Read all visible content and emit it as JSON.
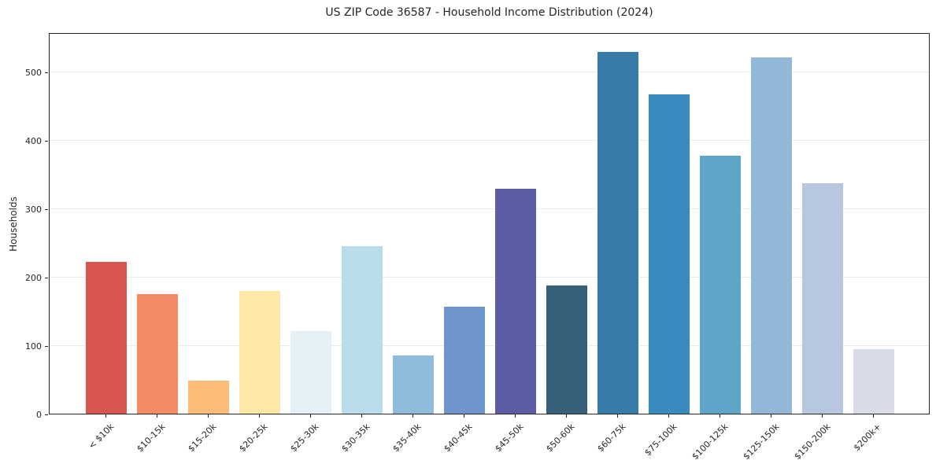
{
  "chart_data": {
    "type": "bar",
    "title": "US ZIP Code 36587 - Household Income Distribution (2024)",
    "xlabel": "",
    "ylabel": "Households",
    "categories": [
      "< $10k",
      "$10-15k",
      "$15-20k",
      "$20-25k",
      "$25-30k",
      "$30-35k",
      "$35-40k",
      "$40-45k",
      "$45-50k",
      "$50-60k",
      "$60-75k",
      "$75-100k",
      "$100-125k",
      "$125-150k",
      "$150-200k",
      "$200k+"
    ],
    "values": [
      222,
      175,
      48,
      179,
      121,
      245,
      85,
      156,
      329,
      188,
      529,
      467,
      377,
      521,
      337,
      94
    ],
    "bar_colors": [
      "#d95550",
      "#f58a67",
      "#fcbb79",
      "#fde9a5",
      "#e4f1f7",
      "#b9ddeb",
      "#8fbbdd",
      "#6e96cb",
      "#5b5ba6",
      "#34607a",
      "#377ca8",
      "#398bbf",
      "#5fa5c9",
      "#93b7d9",
      "#b7c7df",
      "#d8dce8"
    ],
    "yticks": [
      0,
      100,
      200,
      300,
      400,
      500
    ],
    "ylim": [
      0,
      558
    ],
    "grid": true,
    "grid_color": "#ebebeb",
    "spine_color": "#262626",
    "legend": "none"
  }
}
